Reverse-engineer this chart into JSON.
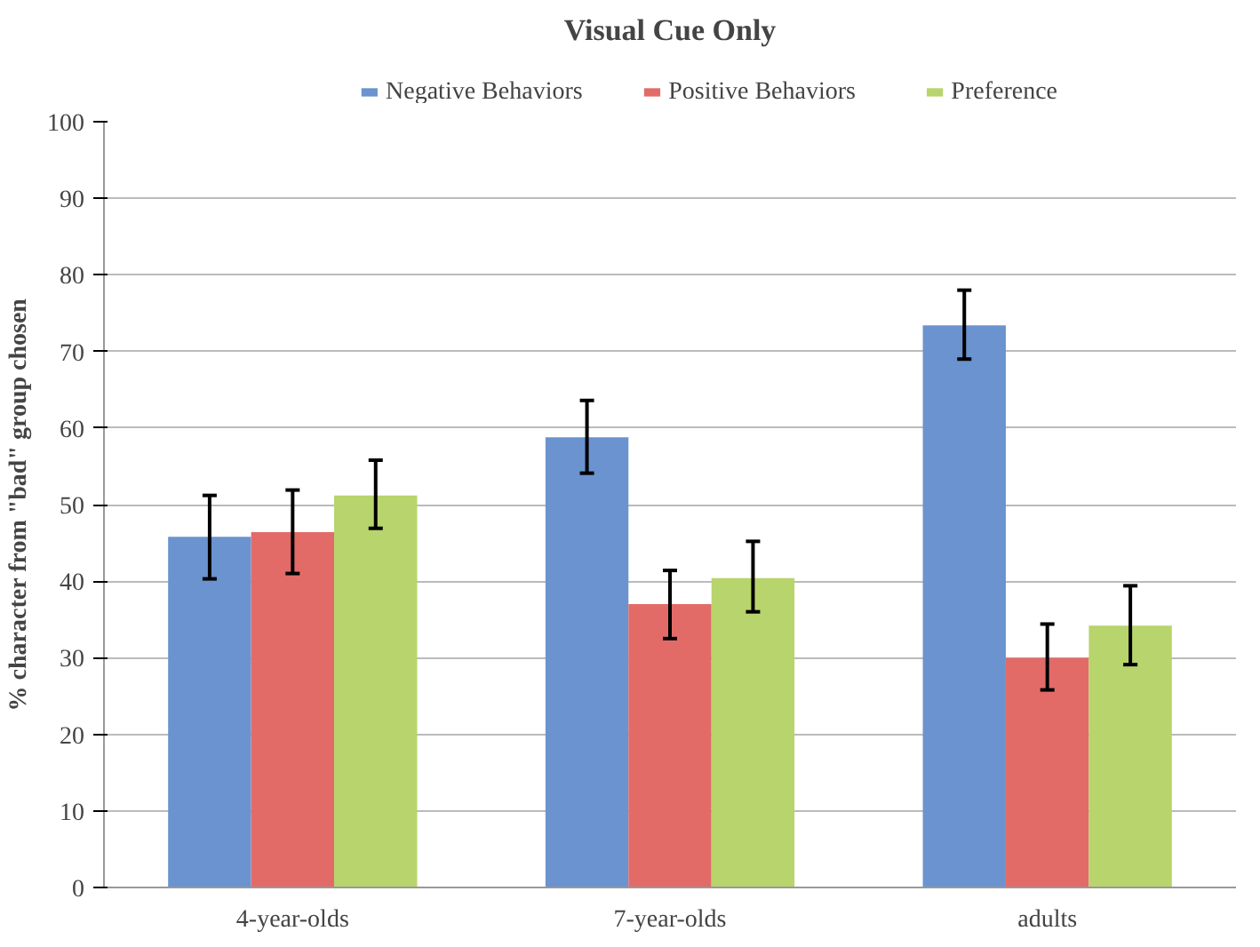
{
  "chart_data": {
    "type": "bar",
    "title": "Visual Cue Only",
    "ylabel": "% character from \"bad\" group chosen",
    "categories": [
      "4-year-olds",
      "7-year-olds",
      "adults"
    ],
    "series": [
      {
        "name": "Negative Behaviors",
        "color": "#6a93cf",
        "values": [
          45.8,
          58.8,
          73.4
        ],
        "errors": [
          [
            40.3,
            51.2
          ],
          [
            54.1,
            63.6
          ],
          [
            69,
            78
          ]
        ]
      },
      {
        "name": "Positive Behaviors",
        "color": "#e26b68",
        "values": [
          46.4,
          37,
          30
        ],
        "errors": [
          [
            41,
            51.9
          ],
          [
            32.5,
            41.4
          ],
          [
            25.8,
            34.4
          ]
        ]
      },
      {
        "name": "Preference",
        "color": "#b8d46c",
        "values": [
          51.2,
          40.4,
          34.2
        ],
        "errors": [
          [
            46.9,
            55.8
          ],
          [
            36,
            45.2
          ],
          [
            29.1,
            39.4
          ]
        ]
      }
    ],
    "ylim": [
      0,
      100
    ],
    "yticks": [
      0,
      10,
      20,
      30,
      40,
      50,
      60,
      70,
      80,
      90,
      100
    ],
    "grid": "y",
    "legend": "top"
  }
}
